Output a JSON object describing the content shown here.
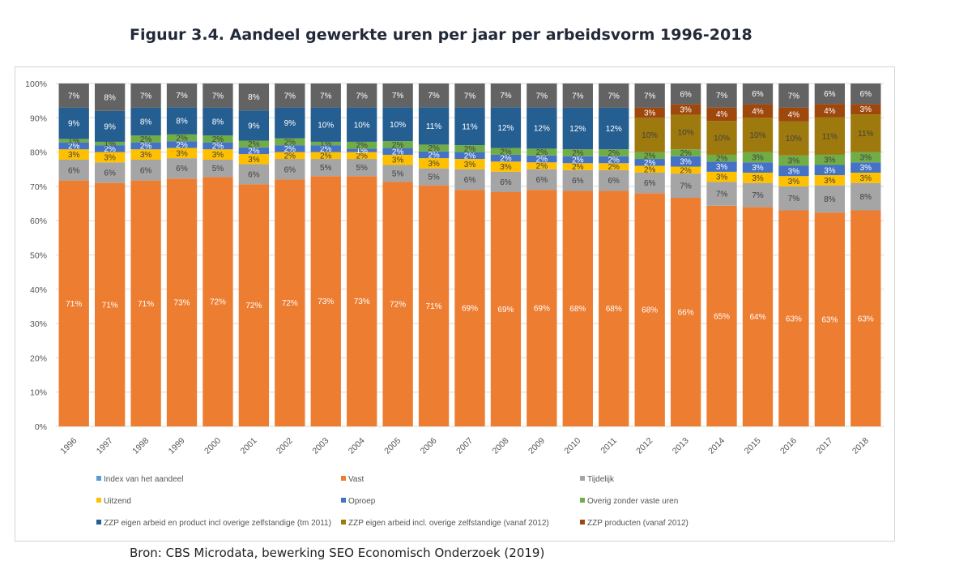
{
  "title": "Figuur 3.4. Aandeel gewerkte uren per jaar per arbeidsvorm 1996-2018",
  "source": "Bron: CBS Microdata, bewerking SEO Economisch Onderzoek (2019)",
  "chart_data": {
    "type": "bar",
    "stacked": true,
    "title": "Figuur 3.4. Aandeel gewerkte uren per jaar per arbeidsvorm 1996-2018",
    "xlabel": "",
    "ylabel": "",
    "ylim": [
      0,
      100
    ],
    "yticks": [
      "0%",
      "10%",
      "20%",
      "30%",
      "40%",
      "50%",
      "60%",
      "70%",
      "80%",
      "90%",
      "100%"
    ],
    "legend_position": "bottom",
    "grid": true,
    "categories": [
      "1996",
      "1997",
      "1998",
      "1999",
      "2000",
      "2001",
      "2002",
      "2003",
      "2004",
      "2005",
      "2006",
      "2007",
      "2008",
      "2009",
      "2010",
      "2011",
      "2012",
      "2013",
      "2014",
      "2015",
      "2016",
      "2017",
      "2018"
    ],
    "series": [
      {
        "name": "Vast",
        "color": "#ED7D31",
        "values": [
          71,
          71,
          71,
          73,
          72,
          72,
          72,
          73,
          73,
          72,
          71,
          69,
          69,
          69,
          68,
          68,
          68,
          66,
          65,
          64,
          63,
          63,
          63
        ],
        "labels": [
          "71%",
          "71%",
          "71%",
          "73%",
          "72%",
          "72%",
          "72%",
          "73%",
          "73%",
          "72%",
          "71%",
          "69%",
          "69%",
          "69%",
          "68%",
          "68%",
          "68%",
          "66%",
          "65%",
          "64%",
          "63%",
          "63%",
          "63%"
        ]
      },
      {
        "name": "Tijdelijk",
        "color": "#A5A5A5",
        "values": [
          6,
          6,
          6,
          6,
          5,
          6,
          6,
          5,
          5,
          5,
          5,
          6,
          6,
          6,
          6,
          6,
          6,
          7,
          7,
          7,
          7,
          8,
          8
        ],
        "labels": [
          "6%",
          "6%",
          "6%",
          "6%",
          "5%",
          "6%",
          "6%",
          "5%",
          "5%",
          "5%",
          "5%",
          "6%",
          "6%",
          "6%",
          "6%",
          "6%",
          "6%",
          "7%",
          "7%",
          "7%",
          "7%",
          "8%",
          "8%"
        ]
      },
      {
        "name": "Uitzend",
        "color": "#FFC000",
        "values": [
          3,
          3,
          3,
          3,
          3,
          3,
          2,
          2,
          2,
          3,
          3,
          3,
          3,
          2,
          2,
          2,
          2,
          2,
          3,
          3,
          3,
          3,
          3
        ],
        "labels": [
          "3%",
          "3%",
          "3%",
          "3%",
          "3%",
          "3%",
          "2%",
          "2%",
          "2%",
          "3%",
          "3%",
          "3%",
          "3%",
          "2%",
          "2%",
          "2%",
          "2%",
          "2%",
          "3%",
          "3%",
          "3%",
          "3%",
          "3%"
        ]
      },
      {
        "name": "Oproep",
        "color": "#4472C4",
        "values": [
          2,
          2,
          2,
          2,
          2,
          2,
          2,
          2,
          1,
          2,
          2,
          2,
          2,
          2,
          2,
          2,
          2,
          3,
          3,
          3,
          3,
          3,
          3
        ],
        "labels": [
          "2%",
          "2%",
          "2%",
          "2%",
          "2%",
          "2%",
          "2%",
          "2%",
          "1%",
          "2%",
          "2%",
          "2%",
          "2%",
          "2%",
          "2%",
          "2%",
          "2%",
          "3%",
          "3%",
          "3%",
          "3%",
          "3%",
          "3%"
        ]
      },
      {
        "name": "Overig zonder vaste uren",
        "color": "#70AD47",
        "values": [
          1,
          1,
          2,
          2,
          2,
          2,
          2,
          1,
          2,
          2,
          2,
          2,
          2,
          2,
          2,
          2,
          2,
          2,
          2,
          3,
          3,
          3,
          3
        ],
        "labels": [
          "1%",
          "1%",
          "2%",
          "2%",
          "2%",
          "2%",
          "2%",
          "1%",
          "2%",
          "2%",
          "2%",
          "2%",
          "2%",
          "2%",
          "2%",
          "2%",
          "2%",
          "2%",
          "2%",
          "3%",
          "3%",
          "3%",
          "3%"
        ]
      },
      {
        "name": "ZZP eigen arbeid en product incl overige zelfstandige (tm 2011)",
        "color": "#255E91",
        "values": [
          9,
          9,
          8,
          8,
          8,
          9,
          9,
          10,
          10,
          10,
          11,
          11,
          12,
          12,
          12,
          12,
          0,
          0,
          0,
          0,
          0,
          0,
          0
        ],
        "labels": [
          "9%",
          "9%",
          "8%",
          "8%",
          "8%",
          "9%",
          "9%",
          "10%",
          "10%",
          "10%",
          "11%",
          "11%",
          "12%",
          "12%",
          "12%",
          "12%",
          "",
          "",
          "",
          "",
          "",
          "",
          ""
        ]
      },
      {
        "name": "ZZP eigen arbeid incl. overige zelfstandige (vanaf 2012)",
        "color": "#9E7A0E",
        "values": [
          0,
          0,
          0,
          0,
          0,
          0,
          0,
          0,
          0,
          0,
          0,
          0,
          0,
          0,
          0,
          0,
          10,
          10,
          10,
          10,
          10,
          11,
          11
        ],
        "labels": [
          "",
          "",
          "",
          "",
          "",
          "",
          "",
          "",
          "",
          "",
          "",
          "",
          "",
          "",
          "",
          "",
          "10%",
          "10%",
          "10%",
          "10%",
          "10%",
          "11%",
          "11%"
        ]
      },
      {
        "name": "ZZP producten (vanaf 2012)",
        "color": "#9E480E",
        "values": [
          0,
          0,
          0,
          0,
          0,
          0,
          0,
          0,
          0,
          0,
          0,
          0,
          0,
          0,
          0,
          0,
          3,
          3,
          4,
          4,
          4,
          4,
          3
        ],
        "labels": [
          "",
          "",
          "",
          "",
          "",
          "",
          "",
          "",
          "",
          "",
          "",
          "",
          "",
          "",
          "",
          "",
          "3%",
          "3%",
          "4%",
          "4%",
          "4%",
          "4%",
          "3%"
        ]
      },
      {
        "name": "Index van het aandeel",
        "color": "#636363",
        "values": [
          7,
          8,
          7,
          7,
          7,
          8,
          7,
          7,
          7,
          7,
          7,
          7,
          7,
          7,
          7,
          7,
          7,
          6,
          7,
          6,
          7,
          6,
          6
        ],
        "labels": [
          "7%",
          "8%",
          "7%",
          "7%",
          "7%",
          "8%",
          "7%",
          "7%",
          "7%",
          "7%",
          "7%",
          "7%",
          "7%",
          "7%",
          "7%",
          "7%",
          "7%",
          "6%",
          "7%",
          "6%",
          "7%",
          "6%",
          "6%"
        ]
      }
    ],
    "legend": [
      {
        "name": "Index van het aandeel",
        "color": "#5B9BD5"
      },
      {
        "name": "Vast",
        "color": "#ED7D31"
      },
      {
        "name": "Tijdelijk",
        "color": "#A5A5A5"
      },
      {
        "name": "Uitzend",
        "color": "#FFC000"
      },
      {
        "name": "Oproep",
        "color": "#4472C4"
      },
      {
        "name": "Overig zonder vaste uren",
        "color": "#70AD47"
      },
      {
        "name": "ZZP eigen arbeid en product incl overige zelfstandige (tm 2011)",
        "color": "#255E91"
      },
      {
        "name": "ZZP eigen arbeid incl. overige zelfstandige (vanaf 2012)",
        "color": "#9E7A0E"
      },
      {
        "name": "ZZP producten (vanaf 2012)",
        "color": "#9E480E"
      }
    ]
  }
}
